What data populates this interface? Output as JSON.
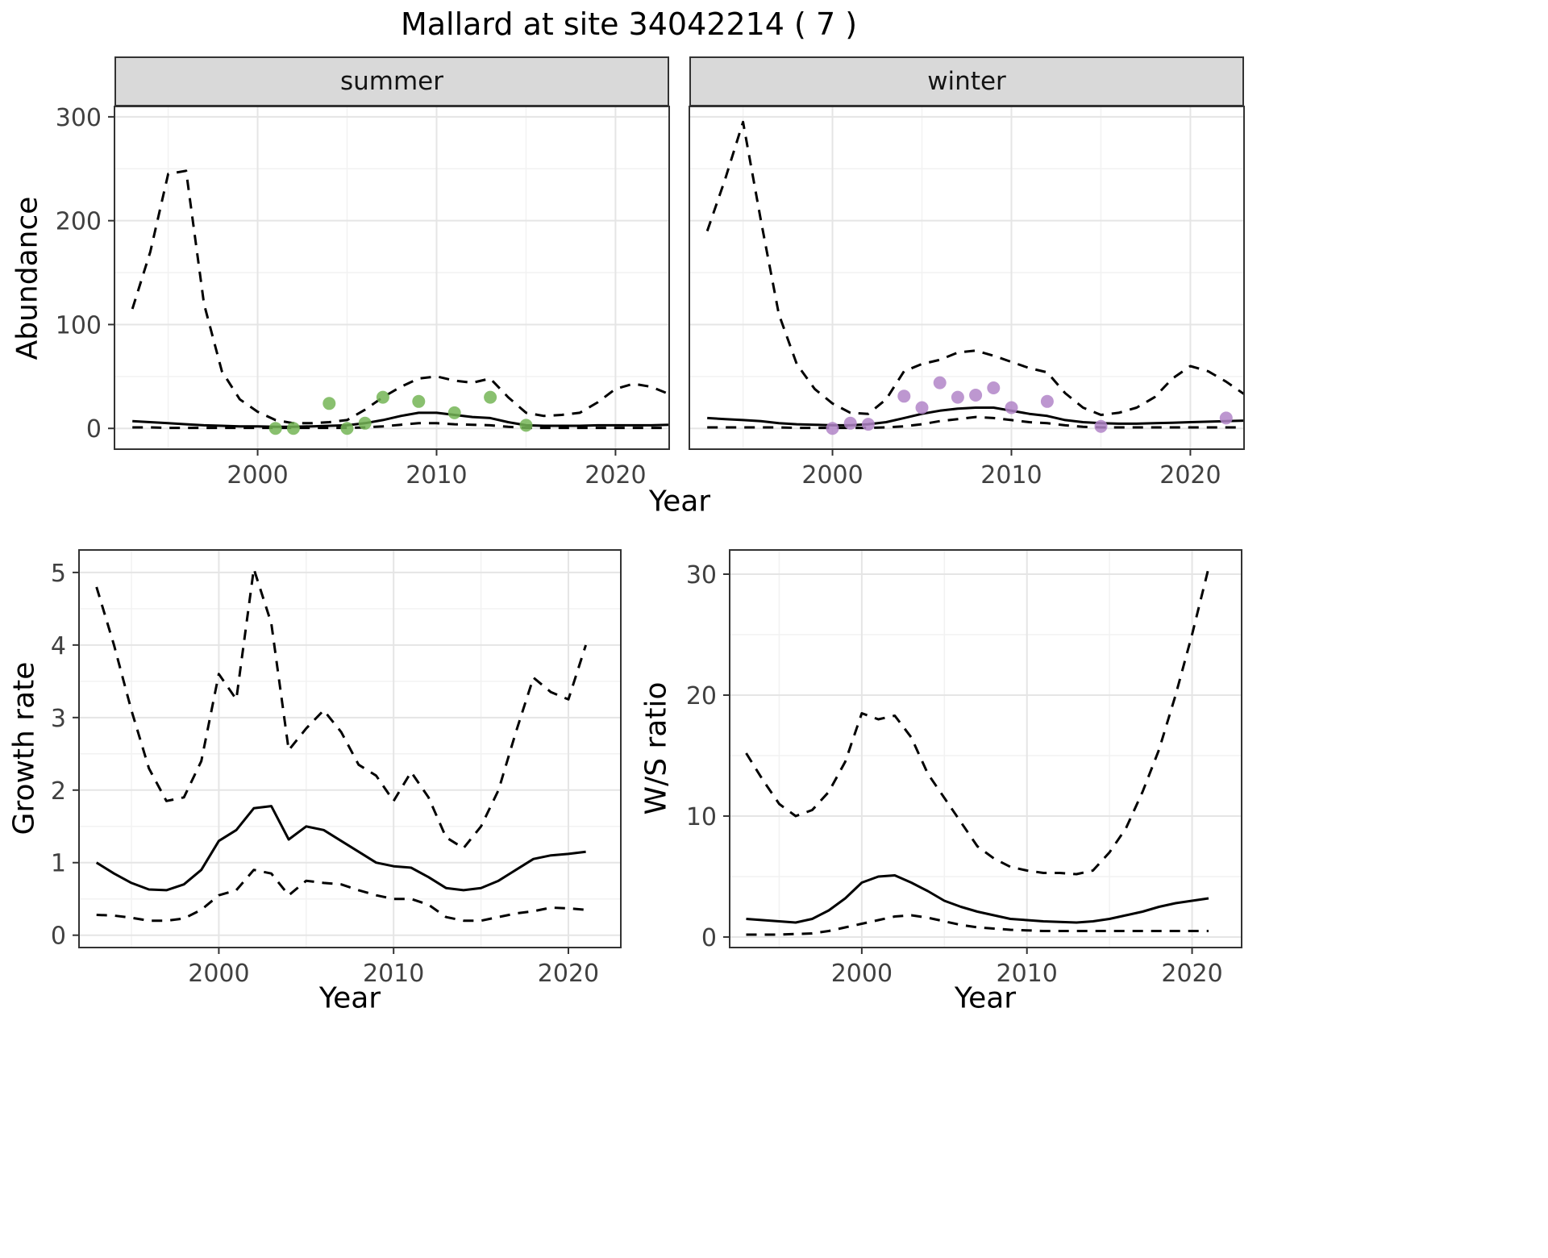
{
  "title": "Mallard at site 34042214 ( 7 )",
  "colors": {
    "line": "#000000",
    "border": "#333333",
    "grid_major": "#e5e5e5",
    "grid_minor": "#f2f2f2",
    "tick_text": "#404040",
    "strip_background": "#d9d9d9",
    "summer_points": "#74b556",
    "winter_points": "#b285c8"
  },
  "chart_data": [
    {
      "id": "abundance",
      "type": "line",
      "title": "Abundance by season (facets: summer, winter)",
      "xlabel": "Year",
      "ylabel": "Abundance",
      "xlim": [
        1992,
        2023
      ],
      "ylim": [
        -20,
        310
      ],
      "xticks": [
        2000,
        2010,
        2020
      ],
      "yticks": [
        0,
        100,
        200,
        300
      ],
      "grid": true,
      "legend": "none",
      "years": [
        1993,
        1994,
        1995,
        1996,
        1997,
        1998,
        1999,
        2000,
        2001,
        2002,
        2003,
        2004,
        2005,
        2006,
        2007,
        2008,
        2009,
        2010,
        2011,
        2012,
        2013,
        2014,
        2015,
        2016,
        2017,
        2018,
        2019,
        2020,
        2021,
        2022,
        2023
      ],
      "facets": [
        {
          "label": "summer",
          "point_color": "#74b556",
          "upper": [
            115,
            170,
            245,
            248,
            120,
            55,
            28,
            16,
            8,
            5,
            5,
            6,
            8,
            18,
            30,
            40,
            48,
            50,
            46,
            44,
            48,
            30,
            15,
            12,
            13,
            15,
            25,
            38,
            43,
            40,
            33
          ],
          "fit": [
            7,
            6,
            5,
            4,
            3,
            2.5,
            2,
            2,
            1.5,
            1.5,
            2,
            2.5,
            3,
            5,
            8,
            12,
            15,
            15,
            13,
            11,
            10,
            6,
            3,
            2.5,
            2.5,
            2.5,
            3,
            3,
            3,
            3,
            3.5
          ],
          "lower": [
            1,
            1,
            0.5,
            0.5,
            0.5,
            0.5,
            0.5,
            0.5,
            0.5,
            0.5,
            0.5,
            0.5,
            0.5,
            1,
            2,
            3.5,
            5,
            5,
            4,
            3.5,
            3,
            1.5,
            0.5,
            0.5,
            0.5,
            0.5,
            0.5,
            0.5,
            0.5,
            0.5,
            0.5
          ],
          "obs_x": [
            2001,
            2002,
            2004,
            2005,
            2006,
            2007,
            2009,
            2011,
            2013,
            2015
          ],
          "obs_y": [
            0,
            0,
            24,
            0,
            5,
            30,
            26,
            15,
            30,
            3
          ]
        },
        {
          "label": "winter",
          "point_color": "#b285c8",
          "upper": [
            190,
            240,
            295,
            200,
            110,
            62,
            38,
            24,
            15,
            14,
            28,
            55,
            62,
            66,
            73,
            75,
            70,
            64,
            58,
            54,
            34,
            20,
            13,
            15,
            20,
            30,
            48,
            60,
            55,
            45,
            33
          ],
          "fit": [
            10,
            9,
            8,
            7,
            5,
            4,
            3.5,
            3,
            3,
            4,
            6,
            10,
            14,
            17,
            19,
            20,
            20,
            17,
            14,
            12,
            8,
            6,
            5,
            4.5,
            4.5,
            5,
            5.5,
            6,
            6.5,
            7,
            7.5
          ],
          "lower": [
            1,
            1,
            1,
            1,
            1,
            0.5,
            0.5,
            0.5,
            0.5,
            0.5,
            1,
            2,
            4,
            7,
            9,
            11,
            10,
            8,
            6,
            5,
            3,
            1.5,
            1,
            1,
            1,
            1,
            1,
            1,
            1,
            1,
            1
          ],
          "obs_x": [
            2000,
            2001,
            2002,
            2004,
            2005,
            2006,
            2007,
            2008,
            2009,
            2010,
            2012,
            2015,
            2022
          ],
          "obs_y": [
            0,
            5,
            4,
            31,
            20,
            44,
            30,
            32,
            39,
            20,
            26,
            2,
            10
          ]
        }
      ]
    },
    {
      "id": "growth",
      "type": "line",
      "title": "Growth rate over time",
      "xlabel": "Year",
      "ylabel": "Growth rate",
      "xlim": [
        1992,
        2023
      ],
      "ylim": [
        -0.17,
        5.31
      ],
      "xticks": [
        2000,
        2010,
        2020
      ],
      "yticks": [
        0,
        1,
        2,
        3,
        4,
        5
      ],
      "grid": true,
      "legend": "none",
      "years": [
        1993,
        1994,
        1995,
        1996,
        1997,
        1998,
        1999,
        2000,
        2001,
        2002,
        2003,
        2004,
        2005,
        2006,
        2007,
        2008,
        2009,
        2010,
        2011,
        2012,
        2013,
        2014,
        2015,
        2016,
        2017,
        2018,
        2019,
        2020,
        2021
      ],
      "upper": [
        4.8,
        4.0,
        3.1,
        2.3,
        1.85,
        1.9,
        2.4,
        3.6,
        3.25,
        5.05,
        4.3,
        2.55,
        2.85,
        3.1,
        2.8,
        2.35,
        2.2,
        1.85,
        2.25,
        1.9,
        1.35,
        1.2,
        1.5,
        2.0,
        2.8,
        3.55,
        3.35,
        3.25,
        4.0
      ],
      "fit": [
        1.0,
        0.85,
        0.72,
        0.63,
        0.62,
        0.7,
        0.9,
        1.3,
        1.45,
        1.75,
        1.78,
        1.32,
        1.5,
        1.45,
        1.3,
        1.15,
        1.0,
        0.95,
        0.93,
        0.8,
        0.65,
        0.62,
        0.65,
        0.75,
        0.9,
        1.05,
        1.1,
        1.12,
        1.15
      ],
      "lower": [
        0.28,
        0.27,
        0.24,
        0.2,
        0.2,
        0.23,
        0.35,
        0.55,
        0.62,
        0.9,
        0.85,
        0.55,
        0.75,
        0.72,
        0.7,
        0.62,
        0.55,
        0.5,
        0.5,
        0.42,
        0.25,
        0.2,
        0.2,
        0.25,
        0.3,
        0.33,
        0.38,
        0.37,
        0.35
      ]
    },
    {
      "id": "ws",
      "type": "line",
      "title": "Winter/Summer ratio over time",
      "xlabel": "Year",
      "ylabel": "W/S ratio",
      "xlim": [
        1992,
        2023
      ],
      "ylim": [
        -0.87,
        32
      ],
      "xticks": [
        2000,
        2010,
        2020
      ],
      "yticks": [
        0,
        10,
        20,
        30
      ],
      "grid": true,
      "legend": "none",
      "years": [
        1993,
        1994,
        1995,
        1996,
        1997,
        1998,
        1999,
        2000,
        2001,
        2002,
        2003,
        2004,
        2005,
        2006,
        2007,
        2008,
        2009,
        2010,
        2011,
        2012,
        2013,
        2014,
        2015,
        2016,
        2017,
        2018,
        2019,
        2020,
        2021
      ],
      "upper": [
        15.2,
        13,
        11,
        10,
        10.5,
        12,
        14.5,
        18.5,
        18,
        18.3,
        16.5,
        13.5,
        11.5,
        9.5,
        7.5,
        6.5,
        5.8,
        5.5,
        5.3,
        5.3,
        5.2,
        5.5,
        7,
        9,
        12,
        15.5,
        20,
        25,
        30.5
      ],
      "fit": [
        1.5,
        1.4,
        1.3,
        1.2,
        1.5,
        2.2,
        3.2,
        4.5,
        5.0,
        5.1,
        4.5,
        3.8,
        3.0,
        2.5,
        2.1,
        1.8,
        1.5,
        1.4,
        1.3,
        1.25,
        1.2,
        1.3,
        1.5,
        1.8,
        2.1,
        2.5,
        2.8,
        3.0,
        3.2
      ],
      "lower": [
        0.2,
        0.2,
        0.2,
        0.25,
        0.3,
        0.5,
        0.8,
        1.1,
        1.4,
        1.7,
        1.8,
        1.6,
        1.3,
        1.0,
        0.8,
        0.7,
        0.6,
        0.55,
        0.5,
        0.5,
        0.5,
        0.5,
        0.5,
        0.5,
        0.5,
        0.5,
        0.5,
        0.5,
        0.5
      ]
    }
  ]
}
